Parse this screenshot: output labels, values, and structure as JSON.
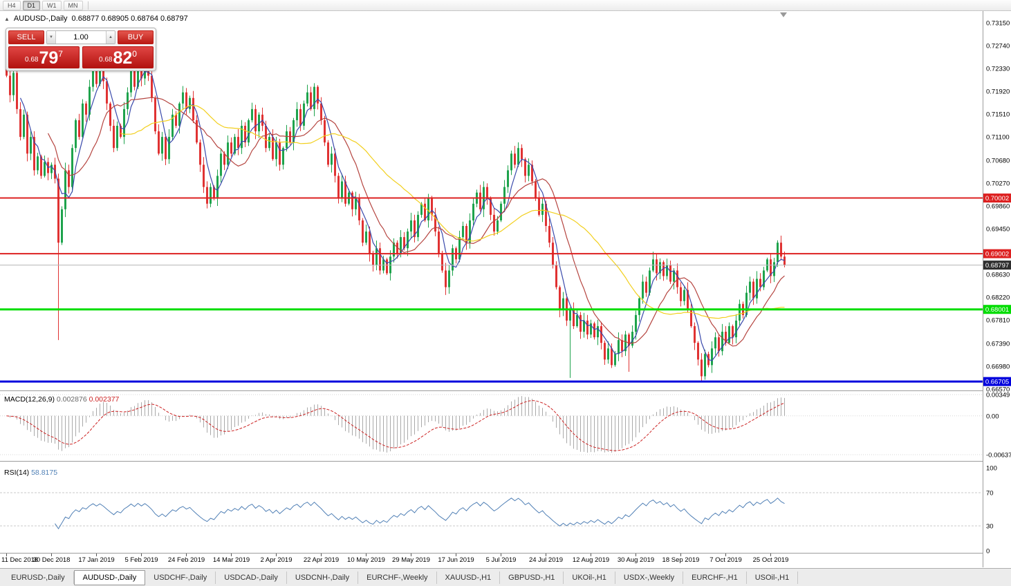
{
  "toolbar": {
    "timeframes": [
      "H4",
      "D1",
      "W1",
      "MN"
    ],
    "active": "D1"
  },
  "chart_header": {
    "symbol": "AUDUSD-,Daily",
    "ohlc": "0.68877 0.68905 0.68764 0.68797"
  },
  "trade_panel": {
    "sell_label": "SELL",
    "buy_label": "BUY",
    "volume": "1.00",
    "bid": {
      "small": "0.68",
      "big": "79",
      "sup": "7"
    },
    "ask": {
      "small": "0.68",
      "big": "82",
      "sup": "0"
    }
  },
  "chart_data": {
    "type": "candlestick",
    "symbol": "AUDUSD",
    "timeframe": "Daily",
    "price_range": {
      "top": 0.7315,
      "bottom": 0.6657
    },
    "price_axis_labels": [
      "0.73150",
      "0.72740",
      "0.72330",
      "0.71920",
      "0.71510",
      "0.71100",
      "0.70680",
      "0.70270",
      "0.69860",
      "0.69450",
      "0.68630",
      "0.68220",
      "0.67810",
      "0.67390",
      "0.66980",
      "0.66570"
    ],
    "date_labels": [
      "11 Dec 2018",
      "30 Dec 2018",
      "17 Jan 2019",
      "5 Feb 2019",
      "24 Feb 2019",
      "14 Mar 2019",
      "2 Apr 2019",
      "22 Apr 2019",
      "10 May 2019",
      "29 May 2019",
      "17 Jun 2019",
      "5 Jul 2019",
      "24 Jul 2019",
      "12 Aug 2019",
      "30 Aug 2019",
      "18 Sep 2019",
      "7 Oct 2019",
      "25 Oct 2019"
    ],
    "first_open": 0.7235,
    "closes": [
      0.722,
      0.7185,
      0.7225,
      0.716,
      0.711,
      0.715,
      0.708,
      0.711,
      0.705,
      0.7075,
      0.704,
      0.7065,
      0.7045,
      0.706,
      0.7035,
      0.692,
      0.698,
      0.705,
      0.702,
      0.709,
      0.714,
      0.711,
      0.717,
      0.715,
      0.72,
      0.7235,
      0.7205,
      0.724,
      0.721,
      0.717,
      0.713,
      0.709,
      0.713,
      0.711,
      0.716,
      0.719,
      0.723,
      0.72,
      0.7245,
      0.7215,
      0.725,
      0.722,
      0.718,
      0.712,
      0.708,
      0.711,
      0.707,
      0.711,
      0.715,
      0.713,
      0.717,
      0.719,
      0.716,
      0.718,
      0.714,
      0.71,
      0.706,
      0.702,
      0.699,
      0.702,
      0.7,
      0.704,
      0.708,
      0.706,
      0.71,
      0.708,
      0.711,
      0.709,
      0.713,
      0.71,
      0.714,
      0.716,
      0.712,
      0.715,
      0.713,
      0.709,
      0.711,
      0.707,
      0.71,
      0.706,
      0.709,
      0.712,
      0.71,
      0.714,
      0.716,
      0.713,
      0.717,
      0.719,
      0.716,
      0.72,
      0.717,
      0.714,
      0.71,
      0.706,
      0.708,
      0.704,
      0.7,
      0.703,
      0.699,
      0.701,
      0.698,
      0.7,
      0.696,
      0.692,
      0.694,
      0.69,
      0.688,
      0.691,
      0.687,
      0.689,
      0.6865,
      0.6895,
      0.692,
      0.69,
      0.693,
      0.691,
      0.694,
      0.696,
      0.693,
      0.697,
      0.699,
      0.696,
      0.7,
      0.697,
      0.694,
      0.69,
      0.687,
      0.684,
      0.687,
      0.691,
      0.689,
      0.693,
      0.695,
      0.692,
      0.696,
      0.699,
      0.701,
      0.698,
      0.702,
      0.7,
      0.697,
      0.694,
      0.696,
      0.699,
      0.702,
      0.705,
      0.708,
      0.706,
      0.709,
      0.707,
      0.704,
      0.706,
      0.703,
      0.7,
      0.697,
      0.699,
      0.695,
      0.692,
      0.688,
      0.684,
      0.68,
      0.682,
      0.678,
      0.68,
      0.677,
      0.679,
      0.676,
      0.678,
      0.6755,
      0.6775,
      0.675,
      0.677,
      0.674,
      0.671,
      0.673,
      0.67,
      0.672,
      0.6745,
      0.6725,
      0.6755,
      0.6735,
      0.676,
      0.679,
      0.682,
      0.685,
      0.683,
      0.687,
      0.689,
      0.6865,
      0.6885,
      0.686,
      0.688,
      0.685,
      0.687,
      0.684,
      0.6815,
      0.6835,
      0.68,
      0.677,
      0.674,
      0.671,
      0.668,
      0.672,
      0.67,
      0.673,
      0.675,
      0.6725,
      0.676,
      0.674,
      0.677,
      0.675,
      0.678,
      0.681,
      0.679,
      0.683,
      0.685,
      0.682,
      0.6855,
      0.684,
      0.687,
      0.689,
      0.686,
      0.6885,
      0.692,
      0.6895,
      0.68797
    ],
    "wick_overrides": {
      "15": 0.6745,
      "163": 0.6677,
      "180": 0.6688,
      "201": 0.667
    },
    "hlines": [
      {
        "price": 0.70002,
        "label": "0.70002",
        "color_key": "hline_red",
        "width": 2
      },
      {
        "price": 0.69002,
        "label": "0.69002",
        "color_key": "hline_red",
        "width": 2
      },
      {
        "price": 0.68001,
        "label": "0.68001",
        "color_key": "hline_green",
        "width": 3
      },
      {
        "price": 0.66705,
        "label": "0.66705",
        "color_key": "hline_blue",
        "width": 3
      }
    ],
    "current_price": {
      "value": 0.68797,
      "label": "0.68797"
    },
    "moving_averages": [
      {
        "period": 5,
        "color_key": "ma_blue"
      },
      {
        "period": 13,
        "color_key": "ma_red"
      },
      {
        "period": 34,
        "color_key": "ma_yellow"
      }
    ],
    "macd": {
      "label": "MACD(12,26,9)",
      "value_main": "0.002876",
      "value_signal": "0.002377",
      "fast": 12,
      "slow": 26,
      "signal": 9,
      "axis_labels": [
        "0.00349",
        "0.00",
        "-0.00637"
      ],
      "range": {
        "max": 0.00349,
        "min": -0.00637
      }
    },
    "rsi": {
      "label": "RSI(14)",
      "value": "58.8175",
      "period": 14,
      "axis_labels": [
        "100",
        "70",
        "30",
        "0"
      ],
      "levels": [
        70,
        30
      ]
    }
  },
  "tabs": [
    {
      "label": "EURUSD-,Daily",
      "active": false
    },
    {
      "label": "AUDUSD-,Daily",
      "active": true
    },
    {
      "label": "USDCHF-,Daily",
      "active": false
    },
    {
      "label": "USDCAD-,Daily",
      "active": false
    },
    {
      "label": "USDCNH-,Daily",
      "active": false
    },
    {
      "label": "EURCHF-,Weekly",
      "active": false
    },
    {
      "label": "XAUUSD-,H1",
      "active": false
    },
    {
      "label": "GBPUSD-,H1",
      "active": false
    },
    {
      "label": "UKOil-,H1",
      "active": false
    },
    {
      "label": "USDX-,Weekly",
      "active": false
    },
    {
      "label": "EURCHF-,H1",
      "active": false
    },
    {
      "label": "USOil-,H1",
      "active": false
    }
  ],
  "colors": {
    "candle_up": "#1ea34c",
    "candle_down": "#e03232",
    "ma_blue": "#3949ab",
    "ma_red": "#b5443f",
    "ma_yellow": "#f2cf1d",
    "hline_red": "#dd2020",
    "hline_green": "#00dd00",
    "hline_blue": "#0000dd",
    "current_line": "#b5b5b5",
    "current_badge": "#2f2f2f",
    "macd_hist": "#a9a9a9",
    "macd_signal": "#cc2222",
    "rsi_line": "#4f7fb5",
    "grid_dotted": "#d5d5d5",
    "separator": "#9c9c9c",
    "trade_red_light": "#e4564e",
    "trade_red_dark": "#bb1a14",
    "price_red_light": "#e04543",
    "price_red_dark": "#b31310"
  }
}
